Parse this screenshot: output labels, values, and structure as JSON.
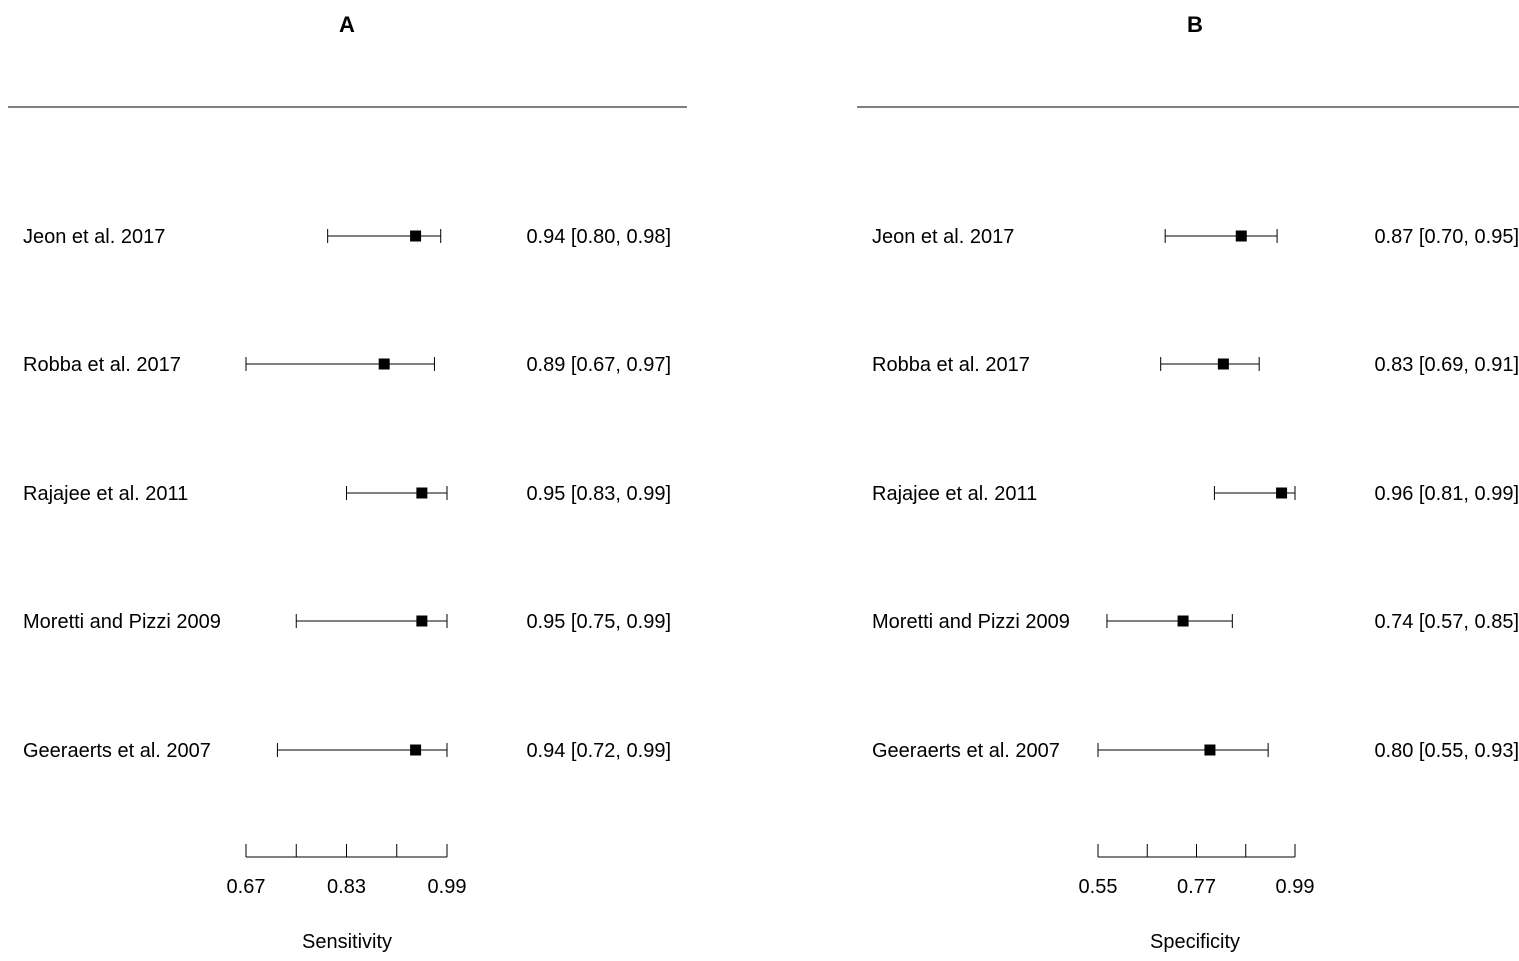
{
  "chart_data": [
    {
      "type": "forest",
      "panel_label": "A",
      "xlabel": "Sensitivity",
      "ticks": [
        0.67,
        0.75,
        0.83,
        0.91,
        0.99
      ],
      "tick_labels": [
        "0.67",
        "0.83",
        "0.99"
      ],
      "studies": [
        {
          "label": "Jeon et al. 2017",
          "estimate": 0.94,
          "lower": 0.8,
          "upper": 0.98,
          "text": "0.94 [0.80, 0.98]"
        },
        {
          "label": "Robba et al. 2017",
          "estimate": 0.89,
          "lower": 0.67,
          "upper": 0.97,
          "text": "0.89 [0.67, 0.97]"
        },
        {
          "label": "Rajajee et al. 2011",
          "estimate": 0.95,
          "lower": 0.83,
          "upper": 0.99,
          "text": "0.95 [0.83, 0.99]"
        },
        {
          "label": "Moretti and Pizzi 2009",
          "estimate": 0.95,
          "lower": 0.75,
          "upper": 0.99,
          "text": "0.95 [0.75, 0.99]"
        },
        {
          "label": "Geeraerts et al. 2007",
          "estimate": 0.94,
          "lower": 0.72,
          "upper": 0.99,
          "text": "0.94 [0.72, 0.99]"
        }
      ]
    },
    {
      "type": "forest",
      "panel_label": "B",
      "xlabel": "Specificity",
      "ticks": [
        0.55,
        0.66,
        0.77,
        0.88,
        0.99
      ],
      "tick_labels": [
        "0.55",
        "0.77",
        "0.99"
      ],
      "studies": [
        {
          "label": "Jeon et al. 2017",
          "estimate": 0.87,
          "lower": 0.7,
          "upper": 0.95,
          "text": "0.87 [0.70, 0.95]"
        },
        {
          "label": "Robba et al. 2017",
          "estimate": 0.83,
          "lower": 0.69,
          "upper": 0.91,
          "text": "0.83 [0.69, 0.91]"
        },
        {
          "label": "Rajajee et al. 2011",
          "estimate": 0.96,
          "lower": 0.81,
          "upper": 0.99,
          "text": "0.96 [0.81, 0.99]"
        },
        {
          "label": "Moretti and Pizzi 2009",
          "estimate": 0.74,
          "lower": 0.57,
          "upper": 0.85,
          "text": "0.74 [0.57, 0.85]"
        },
        {
          "label": "Geeraerts et al. 2007",
          "estimate": 0.8,
          "lower": 0.55,
          "upper": 0.93,
          "text": "0.80 [0.55, 0.93]"
        }
      ]
    }
  ]
}
